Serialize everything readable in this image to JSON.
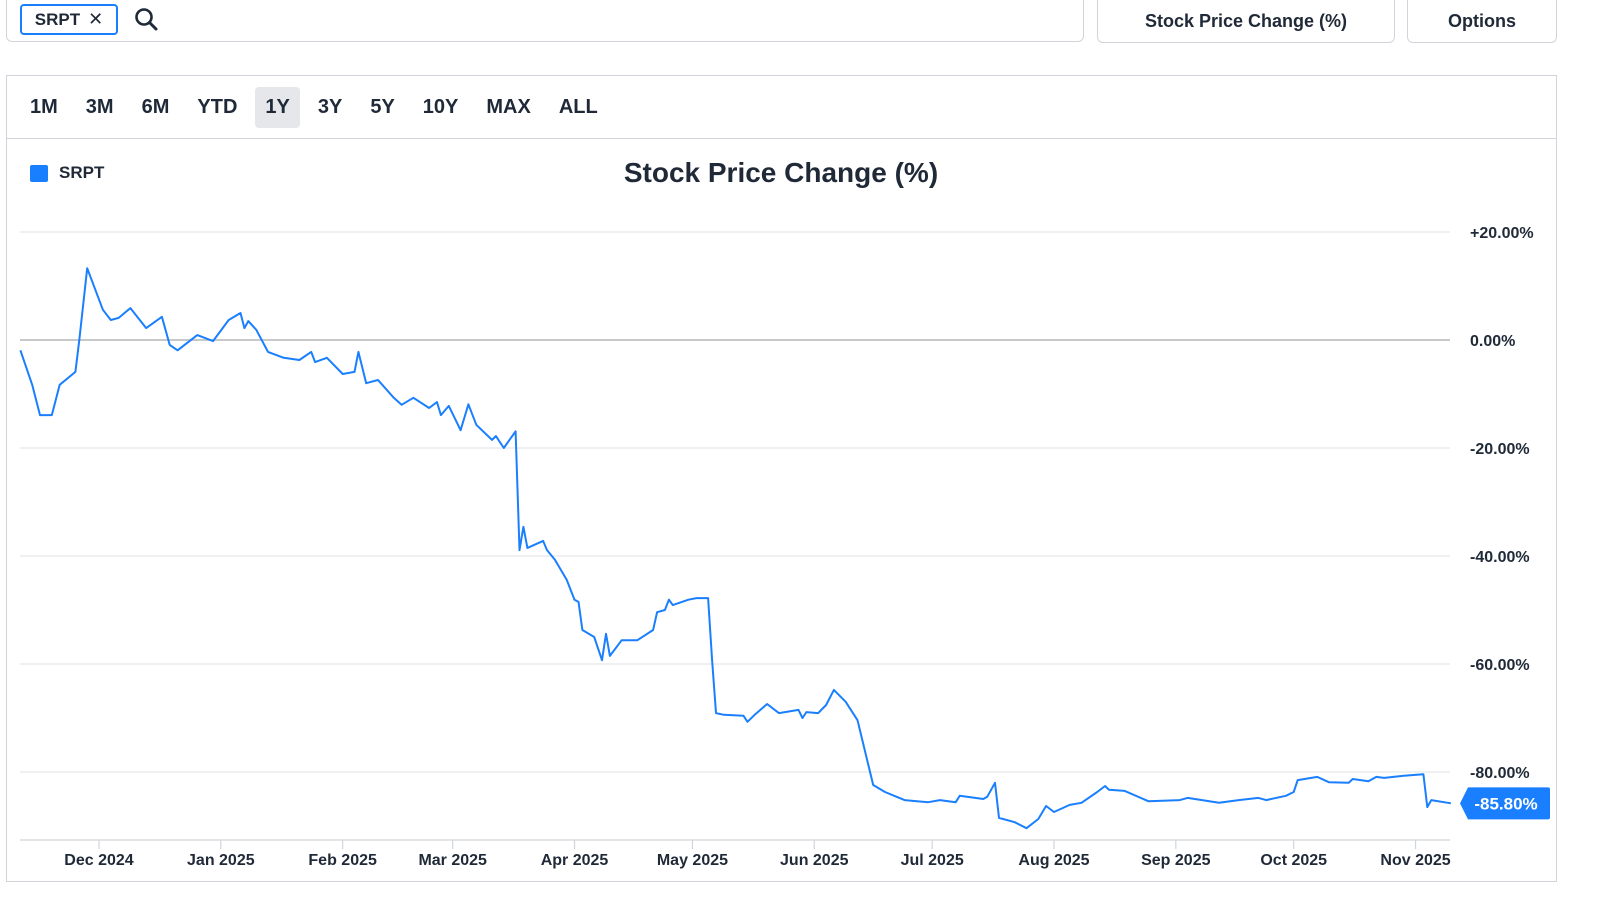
{
  "search": {
    "ticker_chip": "SRPT",
    "remove_icon": "close-icon",
    "search_icon": "search-icon"
  },
  "metric_dropdown": {
    "label": "Stock Price Change (%)",
    "icon": "chevron-down-icon"
  },
  "options_dropdown": {
    "label": "Options",
    "icon": "chevron-down-icon"
  },
  "range_tabs": [
    {
      "label": "1M"
    },
    {
      "label": "3M"
    },
    {
      "label": "6M"
    },
    {
      "label": "YTD"
    },
    {
      "label": "1Y",
      "active": true
    },
    {
      "label": "3Y"
    },
    {
      "label": "5Y"
    },
    {
      "label": "10Y"
    },
    {
      "label": "MAX"
    },
    {
      "label": "ALL"
    }
  ],
  "colors": {
    "series": "#1a7fff",
    "grid": "#e5e7eb",
    "zero_line": "#c8c8c8"
  },
  "chart_data": {
    "type": "line",
    "title": "Stock Price Change (%)",
    "legend": {
      "placement": "top-left",
      "entries": [
        "SRPT"
      ]
    },
    "grid": true,
    "y_axis": {
      "position": "right",
      "ticks": [
        20,
        0,
        -20,
        -40,
        -60,
        -80
      ],
      "tick_labels": [
        "+20.00%",
        "0.00%",
        "-20.00%",
        "-40.00%",
        "-60.00%",
        "-80.00%"
      ]
    },
    "x_axis": {
      "tick_dates": [
        "2024-12-01",
        "2025-01-01",
        "2025-02-01",
        "2025-03-01",
        "2025-04-01",
        "2025-05-01",
        "2025-06-01",
        "2025-07-01",
        "2025-08-01",
        "2025-09-01",
        "2025-10-01",
        "2025-11-01"
      ],
      "tick_labels": [
        "Dec 2024",
        "Jan 2025",
        "Feb 2025",
        "Mar 2025",
        "Apr 2025",
        "May 2025",
        "Jun 2025",
        "Jul 2025",
        "Aug 2025",
        "Sep 2025",
        "Oct 2025",
        "Nov 2025"
      ]
    },
    "last_value_label": "-85.80%",
    "series": [
      {
        "name": "SRPT",
        "points": [
          [
            "2024-11-11",
            -1.9
          ],
          [
            "2024-11-14",
            -8.3
          ],
          [
            "2024-11-16",
            -13.9
          ],
          [
            "2024-11-19",
            -13.9
          ],
          [
            "2024-11-21",
            -8.3
          ],
          [
            "2024-11-25",
            -5.9
          ],
          [
            "2024-11-26",
            0
          ],
          [
            "2024-11-28",
            13.3
          ],
          [
            "2024-12-02",
            5.6
          ],
          [
            "2024-12-04",
            3.7
          ],
          [
            "2024-12-06",
            4.1
          ],
          [
            "2024-12-09",
            5.9
          ],
          [
            "2024-12-13",
            2.2
          ],
          [
            "2024-12-17",
            4.3
          ],
          [
            "2024-12-19",
            -0.9
          ],
          [
            "2024-12-21",
            -1.9
          ],
          [
            "2024-12-26",
            0.9
          ],
          [
            "2024-12-30",
            -0.2
          ],
          [
            "2025-01-03",
            3.7
          ],
          [
            "2025-01-06",
            5.0
          ],
          [
            "2025-01-07",
            2.2
          ],
          [
            "2025-01-08",
            3.5
          ],
          [
            "2025-01-10",
            1.9
          ],
          [
            "2025-01-13",
            -2.2
          ],
          [
            "2025-01-17",
            -3.3
          ],
          [
            "2025-01-21",
            -3.7
          ],
          [
            "2025-01-24",
            -2.2
          ],
          [
            "2025-01-25",
            -4.1
          ],
          [
            "2025-01-28",
            -3.3
          ],
          [
            "2025-02-01",
            -6.3
          ],
          [
            "2025-02-04",
            -5.9
          ],
          [
            "2025-02-05",
            -2.2
          ],
          [
            "2025-02-07",
            -8.0
          ],
          [
            "2025-02-10",
            -7.4
          ],
          [
            "2025-02-14",
            -10.7
          ],
          [
            "2025-02-16",
            -12.0
          ],
          [
            "2025-02-19",
            -10.7
          ],
          [
            "2025-02-23",
            -12.6
          ],
          [
            "2025-02-25",
            -11.5
          ],
          [
            "2025-02-26",
            -13.9
          ],
          [
            "2025-02-28",
            -12.2
          ],
          [
            "2025-03-03",
            -16.7
          ],
          [
            "2025-03-05",
            -11.9
          ],
          [
            "2025-03-07",
            -15.7
          ],
          [
            "2025-03-11",
            -18.5
          ],
          [
            "2025-03-12",
            -17.8
          ],
          [
            "2025-03-14",
            -20.0
          ],
          [
            "2025-03-17",
            -16.9
          ],
          [
            "2025-03-18",
            -38.9
          ],
          [
            "2025-03-19",
            -34.6
          ],
          [
            "2025-03-20",
            -38.5
          ],
          [
            "2025-03-24",
            -37.2
          ],
          [
            "2025-03-25",
            -38.9
          ],
          [
            "2025-03-27",
            -40.7
          ],
          [
            "2025-03-30",
            -44.4
          ],
          [
            "2025-04-01",
            -48.1
          ],
          [
            "2025-04-02",
            -48.5
          ],
          [
            "2025-04-03",
            -53.7
          ],
          [
            "2025-04-06",
            -55.0
          ],
          [
            "2025-04-08",
            -59.3
          ],
          [
            "2025-04-09",
            -54.4
          ],
          [
            "2025-04-10",
            -58.5
          ],
          [
            "2025-04-13",
            -55.6
          ],
          [
            "2025-04-17",
            -55.6
          ],
          [
            "2025-04-21",
            -53.7
          ],
          [
            "2025-04-22",
            -50.4
          ],
          [
            "2025-04-24",
            -50.0
          ],
          [
            "2025-04-25",
            -48.1
          ],
          [
            "2025-04-26",
            -49.1
          ],
          [
            "2025-04-30",
            -48.1
          ],
          [
            "2025-05-02",
            -47.8
          ],
          [
            "2025-05-05",
            -47.8
          ],
          [
            "2025-05-06",
            -59.3
          ],
          [
            "2025-05-07",
            -69.1
          ],
          [
            "2025-05-09",
            -69.4
          ],
          [
            "2025-05-14",
            -69.6
          ],
          [
            "2025-05-15",
            -70.7
          ],
          [
            "2025-05-17",
            -69.3
          ],
          [
            "2025-05-20",
            -67.4
          ],
          [
            "2025-05-23",
            -69.1
          ],
          [
            "2025-05-28",
            -68.5
          ],
          [
            "2025-05-29",
            -70.0
          ],
          [
            "2025-05-30",
            -68.9
          ],
          [
            "2025-06-02",
            -69.1
          ],
          [
            "2025-06-04",
            -67.6
          ],
          [
            "2025-06-06",
            -64.8
          ],
          [
            "2025-06-09",
            -67.0
          ],
          [
            "2025-06-12",
            -70.4
          ],
          [
            "2025-06-16",
            -82.4
          ],
          [
            "2025-06-19",
            -83.7
          ],
          [
            "2025-06-24",
            -85.2
          ],
          [
            "2025-06-30",
            -85.6
          ],
          [
            "2025-07-03",
            -85.2
          ],
          [
            "2025-07-07",
            -85.6
          ],
          [
            "2025-07-08",
            -84.4
          ],
          [
            "2025-07-14",
            -85.0
          ],
          [
            "2025-07-15",
            -84.6
          ],
          [
            "2025-07-17",
            -82.0
          ],
          [
            "2025-07-18",
            -88.5
          ],
          [
            "2025-07-22",
            -89.3
          ],
          [
            "2025-07-25",
            -90.4
          ],
          [
            "2025-07-28",
            -88.7
          ],
          [
            "2025-07-30",
            -86.3
          ],
          [
            "2025-08-01",
            -87.4
          ],
          [
            "2025-08-05",
            -86.1
          ],
          [
            "2025-08-08",
            -85.7
          ],
          [
            "2025-08-12",
            -83.7
          ],
          [
            "2025-08-14",
            -82.6
          ],
          [
            "2025-08-15",
            -83.3
          ],
          [
            "2025-08-19",
            -83.5
          ],
          [
            "2025-08-25",
            -85.4
          ],
          [
            "2025-09-02",
            -85.2
          ],
          [
            "2025-09-04",
            -84.8
          ],
          [
            "2025-09-12",
            -85.7
          ],
          [
            "2025-09-17",
            -85.2
          ],
          [
            "2025-09-22",
            -84.8
          ],
          [
            "2025-09-24",
            -85.2
          ],
          [
            "2025-09-29",
            -84.4
          ],
          [
            "2025-10-01",
            -83.7
          ],
          [
            "2025-10-02",
            -81.5
          ],
          [
            "2025-10-07",
            -80.9
          ],
          [
            "2025-10-10",
            -81.9
          ],
          [
            "2025-10-15",
            -82.0
          ],
          [
            "2025-10-16",
            -81.3
          ],
          [
            "2025-10-20",
            -81.7
          ],
          [
            "2025-10-22",
            -80.9
          ],
          [
            "2025-10-24",
            -81.1
          ],
          [
            "2025-10-29",
            -80.7
          ],
          [
            "2025-11-03",
            -80.4
          ],
          [
            "2025-11-04",
            -86.5
          ],
          [
            "2025-11-05",
            -85.2
          ],
          [
            "2025-11-10",
            -85.8
          ]
        ]
      }
    ]
  }
}
